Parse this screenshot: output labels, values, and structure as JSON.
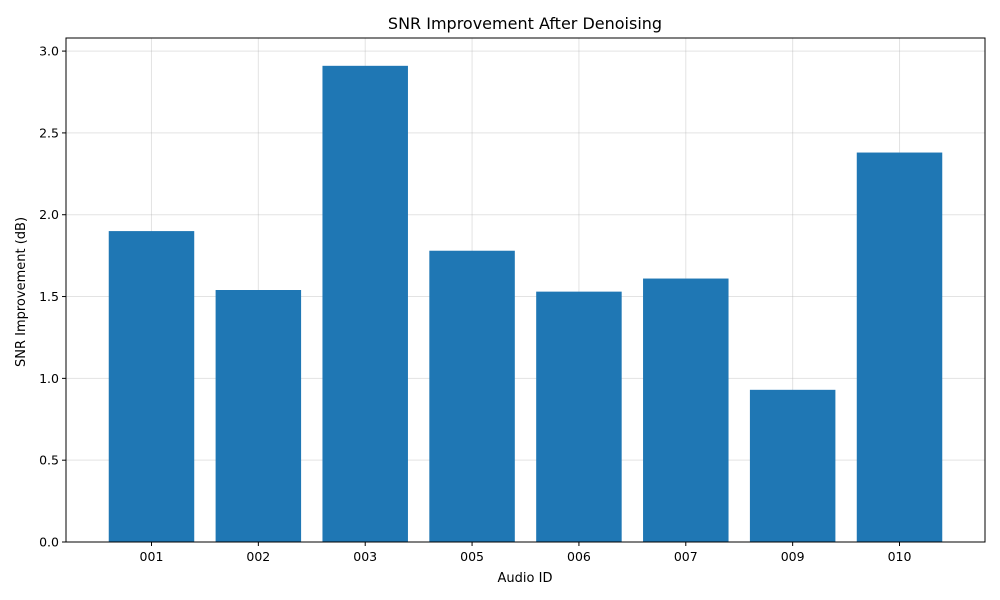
{
  "chart_data": {
    "type": "bar",
    "title": "SNR Improvement After Denoising",
    "xlabel": "Audio ID",
    "ylabel": "SNR Improvement (dB)",
    "categories": [
      "001",
      "002",
      "003",
      "005",
      "006",
      "007",
      "009",
      "010"
    ],
    "values": [
      1.9,
      1.54,
      2.91,
      1.78,
      1.53,
      1.61,
      0.93,
      2.38
    ],
    "ylim": [
      0,
      3.08
    ],
    "yticks": [
      0.0,
      0.5,
      1.0,
      1.5,
      2.0,
      2.5,
      3.0
    ],
    "ytick_labels": [
      "0.0",
      "0.5",
      "1.0",
      "1.5",
      "2.0",
      "2.5",
      "3.0"
    ],
    "grid": true,
    "bar_color": "#1f77b4"
  }
}
